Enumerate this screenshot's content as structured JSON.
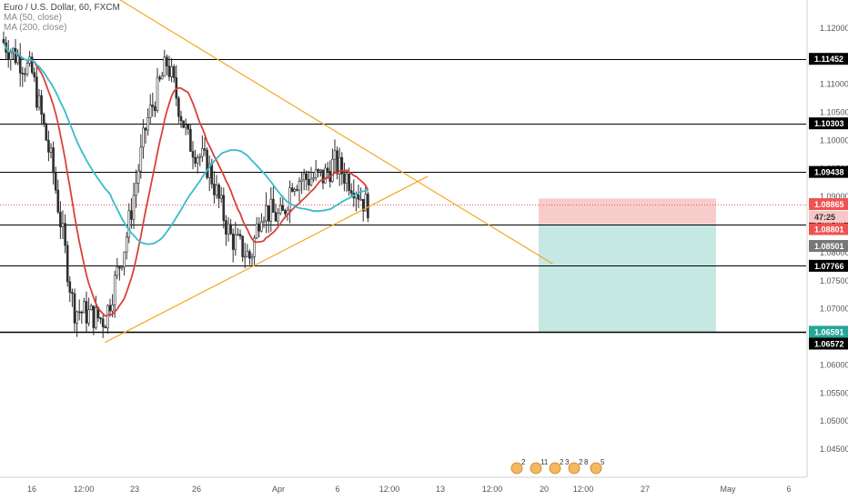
{
  "header": {
    "symbol_line": "Euro / U.S. Dollar, 60, FXCM",
    "ma50_label": "MA (50, close)",
    "ma200_label": "MA (200, close)"
  },
  "colors": {
    "candle": "#2e2e2e",
    "ma50": "#d8413b",
    "ma200": "#36bccb",
    "trendline": "#f5a623",
    "hline": "#000000",
    "current_price": "#ef5350",
    "short_stop_zone": "#f8c6c6",
    "short_target_zone": "#bfe6df",
    "axis_text": "#555555"
  },
  "chart_data": {
    "type": "candlestick",
    "title": "Euro / U.S. Dollar, 60, FXCM",
    "y_axis": {
      "range": [
        1.04,
        1.125
      ],
      "tick_labels": [
        "1.12000",
        "1.11500",
        "1.11000",
        "1.10500",
        "1.10000",
        "1.09500",
        "1.09000",
        "1.08500",
        "1.08000",
        "1.07500",
        "1.07000",
        "1.06500",
        "1.06000",
        "1.05500",
        "1.05000",
        "1.04500"
      ]
    },
    "x_axis": {
      "tick_labels": [
        "16",
        "12:00",
        "23",
        "26",
        "Apr",
        "6",
        "12:00",
        "13",
        "12:00",
        "20",
        "12:00",
        "27",
        "May",
        "6"
      ]
    },
    "horizontal_levels": [
      {
        "label": "1.11452",
        "value": 1.11452
      },
      {
        "label": "1.10303",
        "value": 1.10303
      },
      {
        "label": "1.09438",
        "value": 1.09438
      },
      {
        "label": "1.08508",
        "value": 1.08508
      },
      {
        "label": "1.07766",
        "value": 1.07766
      },
      {
        "label": "1.06591",
        "value": 1.06591
      }
    ],
    "price_badges": [
      {
        "label": "1.08865",
        "kind": "current"
      },
      {
        "label": "47:25",
        "kind": "countdown"
      },
      {
        "label": "1.08801",
        "kind": "ma50"
      },
      {
        "label": "1.08501",
        "kind": "ma200"
      },
      {
        "label": "1.06572",
        "kind": "target"
      }
    ],
    "trendlines": [
      {
        "name": "upper",
        "from": {
          "date": "Mar 13",
          "price": 1.138
        },
        "to": {
          "date": "May 5",
          "price": 1.078
        }
      },
      {
        "name": "lower",
        "from": {
          "date": "Mar 23",
          "price": 1.064
        },
        "to": {
          "date": "Apr 23",
          "price": 1.0936
        }
      }
    ],
    "position": {
      "type": "short",
      "entry": 1.08865,
      "stop": 1.08801,
      "target": 1.06591
    },
    "price_path": [
      {
        "date": "Mar 13",
        "close": 1.118
      },
      {
        "date": "Mar 16",
        "close": 1.112
      },
      {
        "date": "Mar 18",
        "close": 1.095
      },
      {
        "date": "Mar 20",
        "close": 1.07
      },
      {
        "date": "Mar 23",
        "close": 1.068
      },
      {
        "date": "Mar 25",
        "close": 1.082
      },
      {
        "date": "Mar 27",
        "close": 1.103
      },
      {
        "date": "Mar 29",
        "close": 1.114
      },
      {
        "date": "Mar 31",
        "close": 1.1
      },
      {
        "date": "Apr 2",
        "close": 1.095
      },
      {
        "date": "Apr 4",
        "close": 1.083
      },
      {
        "date": "Apr 6",
        "close": 1.079
      },
      {
        "date": "Apr 7",
        "close": 1.088
      },
      {
        "date": "Apr 9",
        "close": 1.086
      },
      {
        "date": "Apr 10",
        "close": 1.093
      },
      {
        "date": "Apr 13",
        "close": 1.0935
      },
      {
        "date": "Apr 14",
        "close": 1.096
      },
      {
        "date": "Apr 16",
        "close": 1.092
      },
      {
        "date": "Apr 17",
        "close": 1.0886
      }
    ],
    "events": [
      "2",
      "11",
      "2",
      "3",
      "2",
      "8",
      "5"
    ]
  }
}
